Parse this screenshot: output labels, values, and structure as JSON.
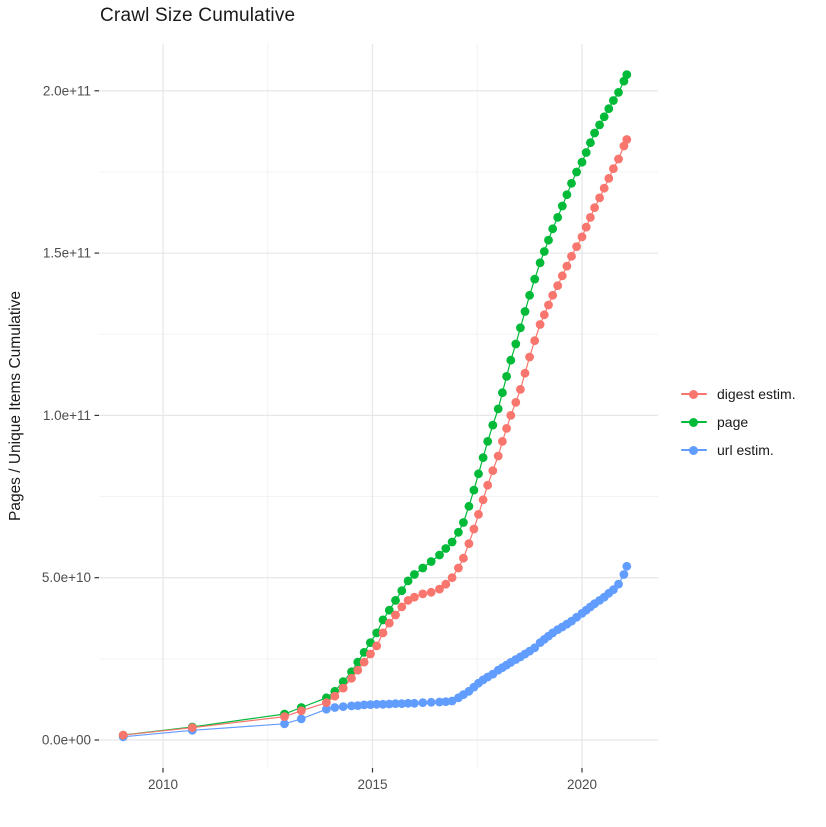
{
  "title": "Crawl Size Cumulative",
  "chart_data": {
    "type": "scatter",
    "title": "Crawl Size Cumulative",
    "xlabel": "",
    "ylabel": "Pages / Unique Items Cumulative",
    "y_unit": "items (values stored in billions, i.e. value × 1e9)",
    "xlim": [
      2008.5,
      2021.8
    ],
    "ylim_billion": [
      -8.6,
      214.5
    ],
    "grid": true,
    "legend_position": "right",
    "background": "#ffffff",
    "grid_major_color": "#e8e8e8",
    "grid_minor_color": "#f3f3f3",
    "tick_mark_color": "#333333",
    "tick_label_color": "#4d4d4d",
    "x_ticks": [
      {
        "year": 2010,
        "label": "2010"
      },
      {
        "year": 2015,
        "label": "2015"
      },
      {
        "year": 2020,
        "label": "2020"
      }
    ],
    "x_minor_ticks": [
      2012.5,
      2017.5
    ],
    "y_ticks": [
      {
        "value_billion": 0,
        "label": "0.0e+00"
      },
      {
        "value_billion": 50,
        "label": "5.0e+10"
      },
      {
        "value_billion": 100,
        "label": "1.0e+11"
      },
      {
        "value_billion": 150,
        "label": "1.5e+11"
      },
      {
        "value_billion": 200,
        "label": "2.0e+11"
      }
    ],
    "y_minor_ticks_billion": [
      25,
      75,
      125,
      175
    ],
    "years": [
      2009.05,
      2010.7,
      2012.9,
      2013.3,
      2013.9,
      2014.1,
      2014.3,
      2014.5,
      2014.65,
      2014.8,
      2014.95,
      2015.1,
      2015.25,
      2015.4,
      2015.55,
      2015.7,
      2015.85,
      2016.0,
      2016.2,
      2016.4,
      2016.6,
      2016.75,
      2016.9,
      2017.05,
      2017.17,
      2017.3,
      2017.42,
      2017.53,
      2017.64,
      2017.75,
      2017.87,
      2018.0,
      2018.1,
      2018.2,
      2018.3,
      2018.42,
      2018.53,
      2018.64,
      2018.75,
      2018.87,
      2019.0,
      2019.1,
      2019.2,
      2019.3,
      2019.42,
      2019.53,
      2019.64,
      2019.75,
      2019.87,
      2020.0,
      2020.1,
      2020.2,
      2020.3,
      2020.42,
      2020.53,
      2020.64,
      2020.75,
      2020.87,
      2021.0,
      2021.07
    ],
    "series": [
      {
        "name": "digest estim.",
        "color": "#F8766D",
        "values_billion": [
          1.5,
          3.8,
          7.2,
          9,
          11.5,
          13.5,
          16,
          19,
          21.5,
          24,
          26.5,
          29,
          33,
          36,
          38.5,
          41,
          43,
          44,
          45,
          45.5,
          46.5,
          48,
          50,
          53,
          56,
          60.5,
          65,
          69.5,
          74,
          78.5,
          83,
          87.5,
          92,
          96,
          100,
          104,
          108,
          113,
          118,
          123,
          128,
          131,
          134,
          137,
          140,
          143,
          146,
          149,
          152,
          155,
          158,
          161,
          164,
          167,
          170,
          173,
          176,
          179,
          183,
          185
        ]
      },
      {
        "name": "page",
        "color": "#00BA38",
        "values_billion": [
          1.5,
          4,
          8,
          10,
          13,
          15,
          18,
          21,
          24,
          27,
          30,
          33,
          37,
          40,
          43,
          46,
          49,
          51,
          53,
          55,
          57,
          59,
          61,
          64,
          67,
          72,
          77,
          82,
          87,
          92,
          97,
          102,
          107,
          112,
          117,
          122,
          127,
          132,
          137,
          142,
          147,
          150.5,
          154,
          157.5,
          161,
          164.5,
          168,
          171.5,
          175,
          178,
          181,
          184,
          187,
          189.5,
          192,
          194.5,
          197,
          199.5,
          203,
          205
        ]
      },
      {
        "name": "url estim.",
        "color": "#619CFF",
        "values_billion": [
          1,
          3,
          5,
          6.5,
          9.5,
          10,
          10.3,
          10.5,
          10.6,
          10.8,
          10.9,
          11,
          11,
          11.1,
          11.2,
          11.2,
          11.3,
          11.3,
          11.5,
          11.6,
          11.7,
          11.8,
          12,
          13,
          14,
          15,
          16.3,
          17.5,
          18.5,
          19.4,
          20.3,
          21.5,
          22.3,
          23.1,
          23.9,
          24.8,
          25.6,
          26.5,
          27.4,
          28.4,
          30,
          31,
          32,
          33,
          34,
          34.8,
          35.7,
          36.6,
          37.8,
          39,
          40,
          41,
          42,
          43,
          44,
          45.2,
          46.3,
          48,
          51,
          53.5
        ]
      }
    ],
    "draw_order": [
      2,
      1,
      0
    ],
    "marker": "circle",
    "line_between_points": true
  }
}
